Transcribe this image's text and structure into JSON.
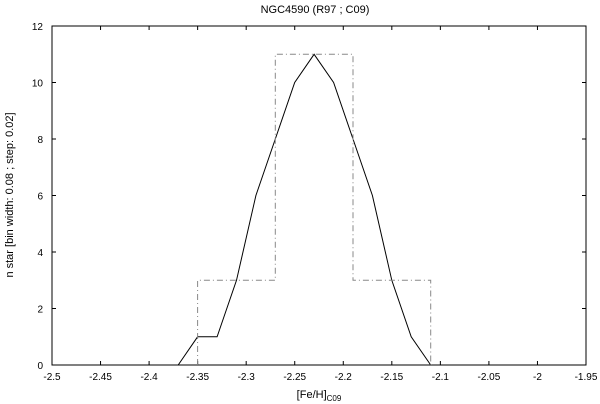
{
  "chart_data": {
    "type": "line",
    "title": "NGC4590 (R97 ; C09)",
    "xlabel": {
      "main": "[Fe/H]",
      "subscript": "C09"
    },
    "ylabel": "n star [bin width: 0.08 ; step: 0.02]",
    "xlim": [
      -2.5,
      -1.95
    ],
    "ylim": [
      0,
      12
    ],
    "xticks": [
      "-2.5",
      "-2.45",
      "-2.4",
      "-2.35",
      "-2.3",
      "-2.25",
      "-2.2",
      "-2.15",
      "-2.1",
      "-2.05",
      "-2",
      "-1.95"
    ],
    "xtick_values": [
      -2.5,
      -2.45,
      -2.4,
      -2.35,
      -2.3,
      -2.25,
      -2.2,
      -2.15,
      -2.1,
      -2.05,
      -2.0,
      -1.95
    ],
    "yticks": [
      "0",
      "2",
      "4",
      "6",
      "8",
      "10",
      "12"
    ],
    "ytick_values": [
      0,
      2,
      4,
      6,
      8,
      10,
      12
    ],
    "grid": false,
    "series": [
      {
        "style": "solid",
        "color": "#000000",
        "x": [
          -2.37,
          -2.35,
          -2.33,
          -2.31,
          -2.29,
          -2.27,
          -2.25,
          -2.23,
          -2.21,
          -2.19,
          -2.17,
          -2.15,
          -2.13,
          -2.11
        ],
        "y": [
          0,
          1,
          1,
          3,
          6,
          8,
          10,
          11,
          10,
          8,
          6,
          3,
          1,
          0
        ]
      },
      {
        "style": "dash-dot",
        "color": "#888888",
        "x": [
          -2.35,
          -2.35,
          -2.27,
          -2.27,
          -2.19,
          -2.19,
          -2.11,
          -2.11
        ],
        "y": [
          0,
          3,
          3,
          11,
          11,
          3,
          3,
          0
        ]
      }
    ]
  }
}
